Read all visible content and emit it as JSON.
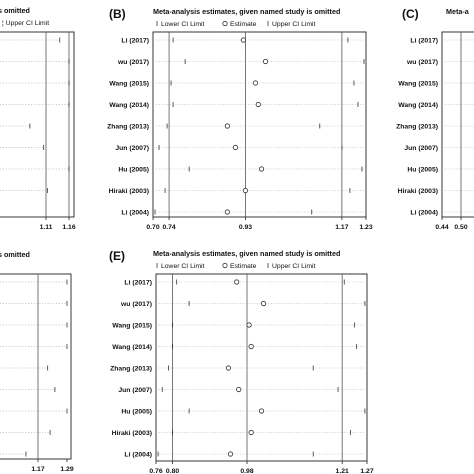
{
  "chart_data": [
    {
      "type": "scatter",
      "panel_label": "",
      "title": "Meta-analysis estimates, given named study is omitted",
      "title_visible_fragment": "s omitted",
      "legend_labels": [
        "Lower CI Limit",
        "Estimate",
        "Upper CI Limit"
      ],
      "legend_visible_fragment": "Upper CI Limit",
      "studies": [
        "Li (2017)",
        "wu (2017)",
        "Wang (2015)",
        "Wang (2014)",
        "Zhang (2013)",
        "Jun (2007)",
        "Hu (2005)",
        "Hiraki (2003)",
        "Li (2004)"
      ],
      "xlim": [
        0.87,
        1.2
      ],
      "ticks": [
        1.11,
        1.16
      ],
      "tick_labels": [
        "1.11",
        "1.16"
      ],
      "ref_lines": [
        1.11,
        1.16
      ],
      "upper": [
        1.14,
        1.16,
        1.16,
        1.16,
        1.075,
        1.105,
        1.16,
        1.113,
        1.0
      ]
    },
    {
      "type": "scatter",
      "panel_label": "(B)",
      "title": "Meta-analysis estimates, given named study is omitted",
      "legend_labels": [
        "Lower CI Limit",
        "Estimate",
        "Upper CI Limit"
      ],
      "studies": [
        "Li (2017)",
        "wu (2017)",
        "Wang (2015)",
        "Wang (2014)",
        "Zhang (2013)",
        "Jun (2007)",
        "Hu (2005)",
        "Hiraki (2003)",
        "Li (2004)"
      ],
      "xlim": [
        0.7,
        1.23
      ],
      "ticks": [
        0.7,
        0.74,
        0.93,
        1.17,
        1.23
      ],
      "tick_labels": [
        "0.70",
        "0.74",
        "0.93",
        "1.17",
        "1.23"
      ],
      "ref_lines": [
        0.74,
        0.93,
        1.17
      ],
      "lower": [
        0.75,
        0.78,
        0.745,
        0.75,
        0.735,
        0.715,
        0.79,
        0.73,
        0.705
      ],
      "estimate": [
        0.925,
        0.98,
        0.955,
        0.962,
        0.885,
        0.905,
        0.97,
        0.93,
        0.885
      ],
      "upper": [
        1.185,
        1.225,
        1.2,
        1.21,
        1.115,
        1.17,
        1.22,
        1.19,
        1.095
      ]
    },
    {
      "type": "scatter",
      "panel_label": "(C)",
      "title_visible_fragment": "Meta-a",
      "studies": [
        "Li (2017)",
        "wu (2017)",
        "Wang (2015)",
        "Wang (2014)",
        "Zhang (2013)",
        "Jun (2007)",
        "Hu (2005)",
        "Hiraki (2003)",
        "Li (2004)"
      ],
      "ticks": [
        0.44,
        0.5
      ],
      "tick_labels": [
        "0.44",
        "0.50"
      ],
      "ref_lines": [
        0.5
      ]
    },
    {
      "type": "scatter",
      "panel_label": "",
      "title_visible_fragment": "s omitted",
      "studies": [
        "Li (2017)",
        "wu (2017)",
        "Wang (2015)",
        "Wang (2014)",
        "Zhang (2013)",
        "Jun (2007)",
        "Hu (2005)",
        "Hiraki (2003)",
        "Li (2004)"
      ],
      "ticks": [
        1.17,
        1.29
      ],
      "tick_labels": [
        "1.17",
        "1.29"
      ],
      "ref_lines": [
        1.17
      ],
      "upper": [
        1.29,
        1.29,
        1.29,
        1.29,
        1.21,
        1.24,
        1.29,
        1.22,
        1.12
      ]
    },
    {
      "type": "scatter",
      "panel_label": "(E)",
      "title": "Meta-analysis estimates, given named study is omitted",
      "legend_labels": [
        "Lower CI Limit",
        "Estimate",
        "Upper CI Limit"
      ],
      "studies": [
        "Li (2017)",
        "wu (2017)",
        "Wang (2015)",
        "Wang (2014)",
        "Zhang (2013)",
        "Jun (2007)",
        "Hu (2005)",
        "Hiraki (2003)",
        "Li (2004)"
      ],
      "xlim": [
        0.76,
        1.27
      ],
      "ticks": [
        0.76,
        0.8,
        0.98,
        1.21,
        1.27
      ],
      "tick_labels": [
        "0.76",
        "0.80",
        "0.98",
        "1.21",
        "1.27"
      ],
      "ref_lines": [
        0.8,
        0.98,
        1.21
      ],
      "lower": [
        0.81,
        0.84,
        0.8,
        0.8,
        0.79,
        0.775,
        0.84,
        0.8,
        0.765
      ],
      "estimate": [
        0.955,
        1.02,
        0.985,
        0.99,
        0.935,
        0.96,
        1.015,
        0.99,
        0.94
      ],
      "upper": [
        1.215,
        1.265,
        1.24,
        1.245,
        1.14,
        1.2,
        1.265,
        1.23,
        1.14
      ]
    }
  ]
}
